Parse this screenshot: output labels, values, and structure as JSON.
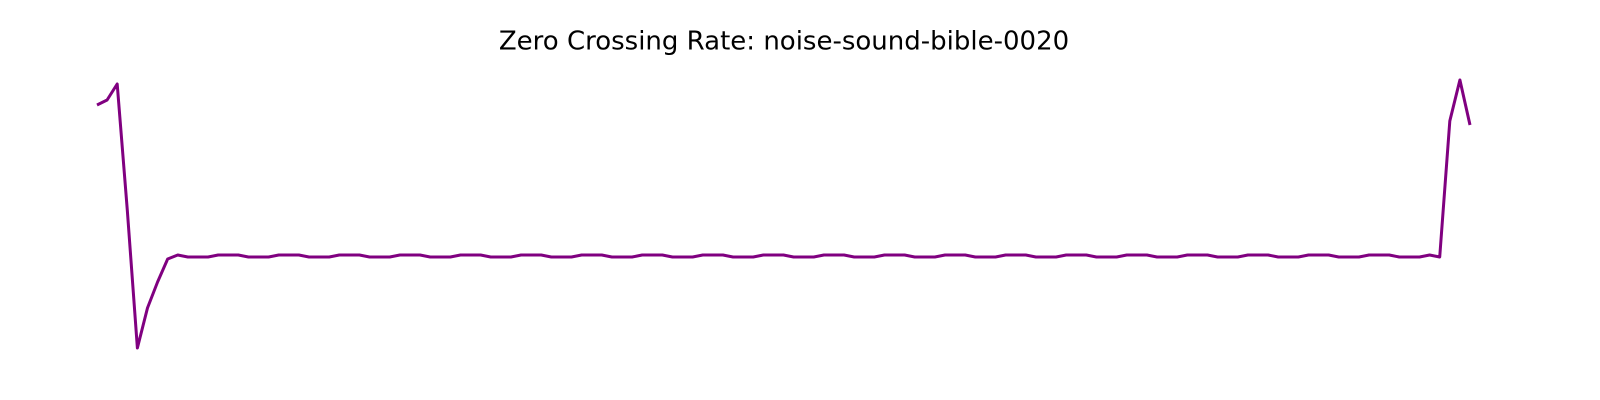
{
  "chart_data": {
    "type": "line",
    "title": "Zero Crossing Rate: noise-sound-bible-0020",
    "color": "#800080",
    "ylim": [
      -0.01,
      0.285
    ],
    "values": [
      0.245,
      0.25,
      0.266,
      0.14,
      0.002,
      0.042,
      0.068,
      0.091,
      0.095,
      0.093,
      0.093,
      0.093,
      0.095,
      0.095,
      0.095,
      0.093,
      0.093,
      0.093,
      0.095,
      0.095,
      0.095,
      0.093,
      0.093,
      0.093,
      0.095,
      0.095,
      0.095,
      0.093,
      0.093,
      0.093,
      0.095,
      0.095,
      0.095,
      0.093,
      0.093,
      0.093,
      0.095,
      0.095,
      0.095,
      0.093,
      0.093,
      0.093,
      0.095,
      0.095,
      0.095,
      0.093,
      0.093,
      0.093,
      0.095,
      0.095,
      0.095,
      0.093,
      0.093,
      0.093,
      0.095,
      0.095,
      0.095,
      0.093,
      0.093,
      0.093,
      0.095,
      0.095,
      0.095,
      0.093,
      0.093,
      0.093,
      0.095,
      0.095,
      0.095,
      0.093,
      0.093,
      0.093,
      0.095,
      0.095,
      0.095,
      0.093,
      0.093,
      0.093,
      0.095,
      0.095,
      0.095,
      0.093,
      0.093,
      0.093,
      0.095,
      0.095,
      0.095,
      0.093,
      0.093,
      0.093,
      0.095,
      0.095,
      0.095,
      0.093,
      0.093,
      0.093,
      0.095,
      0.095,
      0.095,
      0.093,
      0.093,
      0.093,
      0.095,
      0.095,
      0.095,
      0.093,
      0.093,
      0.093,
      0.095,
      0.095,
      0.095,
      0.093,
      0.093,
      0.093,
      0.095,
      0.095,
      0.095,
      0.093,
      0.093,
      0.093,
      0.095,
      0.095,
      0.095,
      0.093,
      0.093,
      0.093,
      0.095,
      0.095,
      0.095,
      0.093,
      0.093,
      0.093,
      0.095,
      0.093,
      0.229,
      0.27,
      0.225
    ]
  }
}
